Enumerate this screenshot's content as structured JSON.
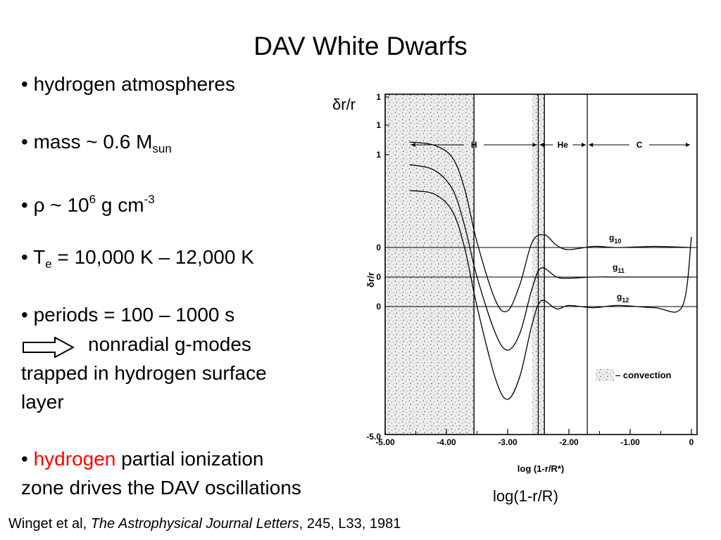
{
  "title": "DAV White Dwarfs",
  "bullets": {
    "b1": "• hydrogen atmospheres",
    "b2_pre": "• mass ~ 0.6 M",
    "b2_sub": "sun",
    "b3_pre": "• ",
    "b3_rho": "ρ",
    "b3_mid": " ~ 10",
    "b3_sup1": "6",
    "b3_mid2": " g cm",
    "b3_sup2": "-3",
    "b4_pre": "• T",
    "b4_sub": "e",
    "b4_post": " = 10,000 K – 12,000 K",
    "b5": "• periods = 100 – 1000 s",
    "b5_modes": "nonradial g-modes",
    "b5_line2": "trapped in hydrogen surface",
    "b5_line3": "layer",
    "b6_pre": "• ",
    "b6_red": "hydrogen",
    "b6_post": " partial ionization",
    "b6_line2": "zone drives the DAV oscillations"
  },
  "labels": {
    "drr": "δr/r",
    "xaxis": "log(1-r/R)",
    "citation_pre": "Winget et al, ",
    "citation_journal": "The Astrophysical Journal Letters",
    "citation_post": ", 245, L33, 1981"
  },
  "colors": {
    "highlight": "#ff0000"
  },
  "chart_data": {
    "type": "line",
    "title": "",
    "xlabel": "log (1-r/R*)",
    "ylabel": "δr/r",
    "xlim": [
      -5.0,
      0
    ],
    "x_ticks": [
      "-5.00",
      "-4.00",
      "-3.00",
      "-2.00",
      "-1.00",
      "0"
    ],
    "y_ticks_left": [
      "1",
      "1",
      "1",
      "0",
      "0",
      "0"
    ],
    "y_bottom_label": "-5.0",
    "layers": [
      {
        "name": "H",
        "x_range": [
          -4.6,
          -2.5
        ]
      },
      {
        "name": "He",
        "x_range": [
          -2.5,
          -1.7
        ]
      },
      {
        "name": "C",
        "x_range": [
          -1.7,
          0
        ]
      }
    ],
    "convection_zones": [
      [
        -5.0,
        -3.55
      ],
      [
        -2.6,
        -2.4
      ]
    ],
    "legend_label": "– convection",
    "series": [
      {
        "name": "g10",
        "x": [
          -4.6,
          -4.2,
          -3.9,
          -3.7,
          -3.5,
          -3.2,
          -3.0,
          -2.8,
          -2.6,
          -2.4,
          -2.2,
          -2.0,
          -1.6,
          -1.2,
          -0.6,
          0
        ],
        "values": [
          1,
          0.97,
          0.85,
          0.55,
          0.05,
          -0.5,
          -0.6,
          -0.35,
          0.05,
          0.12,
          0.02,
          -0.02,
          0.01,
          0,
          0.01,
          0
        ]
      },
      {
        "name": "g11",
        "x": [
          -4.6,
          -4.2,
          -3.9,
          -3.7,
          -3.5,
          -3.2,
          -3.0,
          -2.8,
          -2.6,
          -2.45,
          -2.2,
          -2.0,
          -1.6,
          -1.2,
          -0.6,
          0
        ],
        "values": [
          1,
          0.95,
          0.78,
          0.45,
          0,
          -0.5,
          -0.65,
          -0.5,
          -0.1,
          0.08,
          0,
          -0.01,
          0,
          0,
          0,
          0
        ]
      },
      {
        "name": "g12",
        "x": [
          -4.6,
          -4.2,
          -3.9,
          -3.7,
          -3.5,
          -3.2,
          -3.0,
          -2.8,
          -2.6,
          -2.45,
          -2.2,
          -2.0,
          -1.6,
          -1.2,
          -0.6,
          -0.15,
          0
        ],
        "values": [
          1,
          0.97,
          0.82,
          0.5,
          0,
          -0.62,
          -0.8,
          -0.6,
          -0.15,
          0.05,
          -0.02,
          0.01,
          -0.01,
          0.01,
          -0.01,
          0,
          0.6
        ]
      }
    ]
  }
}
